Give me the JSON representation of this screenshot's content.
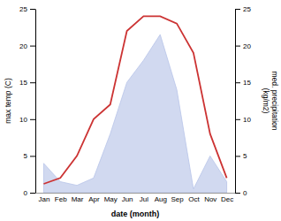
{
  "chart_data": {
    "type": "line",
    "categories": [
      "Jan",
      "Feb",
      "Mar",
      "Apr",
      "May",
      "Jun",
      "Jul",
      "Aug",
      "Sep",
      "Oct",
      "Nov",
      "Dec"
    ],
    "series": [
      {
        "type": "line",
        "color": "#cc3333",
        "values": [
          1.2,
          2.0,
          5.0,
          10.0,
          12.0,
          22.0,
          24.0,
          24.0,
          23.0,
          19.0,
          8.0,
          2.0
        ]
      },
      {
        "type": "area",
        "color": "#b8c4e8",
        "axis": "y2",
        "values": [
          4.0,
          1.5,
          1.0,
          2.0,
          8.0,
          15.0,
          18.0,
          21.5,
          14.0,
          0.5,
          5.0,
          1.5
        ]
      }
    ],
    "xlabel": "date (month)",
    "ylabel": "max temp (C)",
    "y2label": "med. precipitation\n(kg/m2)",
    "ylim": [
      0,
      25
    ],
    "yticks": [
      0,
      5,
      10,
      15,
      20,
      25
    ],
    "y2lim": [
      0,
      25
    ],
    "y2ticks": [
      0,
      5,
      10,
      15,
      20,
      25
    ],
    "grid": false
  }
}
